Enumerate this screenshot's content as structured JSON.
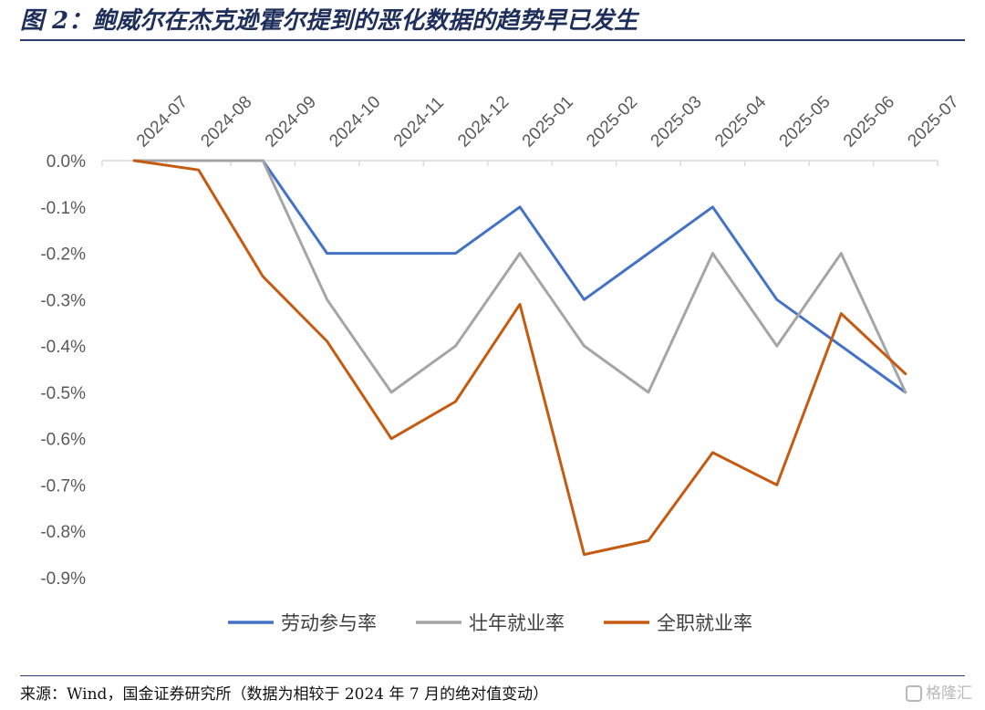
{
  "header": {
    "title": "图 2：鲍威尔在杰克逊霍尔提到的恶化数据的趋势早已发生"
  },
  "footer": {
    "source": "来源：Wind，国金证券研究所（数据为相较于 2024 年 7 月的绝对值变动）",
    "watermark": "格隆汇"
  },
  "chart_data": {
    "type": "line",
    "title": "",
    "xlabel": "",
    "ylabel": "",
    "categories": [
      "2024-07",
      "2024-08",
      "2024-09",
      "2024-10",
      "2024-11",
      "2024-12",
      "2025-01",
      "2025-02",
      "2025-03",
      "2025-04",
      "2025-05",
      "2025-06",
      "2025-07"
    ],
    "ylim": [
      -0.9,
      0.0
    ],
    "yticks": [
      0.0,
      -0.1,
      -0.2,
      -0.3,
      -0.4,
      -0.5,
      -0.6,
      -0.7,
      -0.8,
      -0.9
    ],
    "ytick_labels": [
      "0.0%",
      "-0.1%",
      "-0.2%",
      "-0.3%",
      "-0.4%",
      "-0.5%",
      "-0.6%",
      "-0.7%",
      "-0.8%",
      "-0.9%"
    ],
    "x_axis_position": "top",
    "grid": false,
    "legend_position": "bottom",
    "series": [
      {
        "name": "劳动参与率",
        "color": "#4472c4",
        "values": [
          0.0,
          0.0,
          0.0,
          -0.2,
          -0.2,
          -0.2,
          -0.1,
          -0.3,
          -0.2,
          -0.1,
          -0.3,
          -0.4,
          -0.5
        ]
      },
      {
        "name": "壮年就业率",
        "color": "#a5a5a5",
        "values": [
          0.0,
          0.0,
          0.0,
          -0.3,
          -0.5,
          -0.4,
          -0.2,
          -0.4,
          -0.5,
          -0.2,
          -0.4,
          -0.2,
          -0.5
        ]
      },
      {
        "name": "全职就业率",
        "color": "#c55a11",
        "values": [
          0.0,
          -0.02,
          -0.25,
          -0.39,
          -0.6,
          -0.52,
          -0.31,
          -0.85,
          -0.82,
          -0.63,
          -0.7,
          -0.33,
          -0.46
        ]
      }
    ]
  }
}
